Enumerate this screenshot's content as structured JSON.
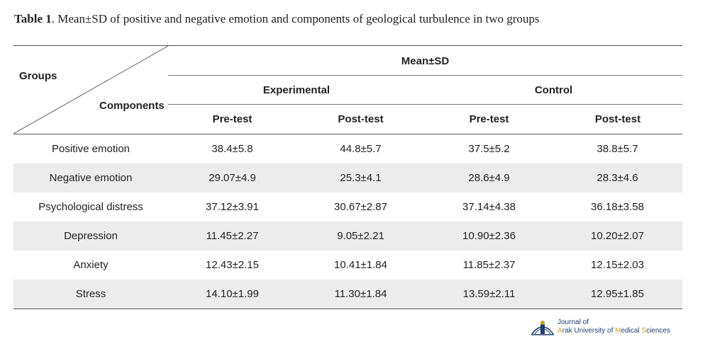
{
  "caption": {
    "label": "Table 1",
    "text": ". Mean±SD of positive and negative emotion and components of geological turbulence in two groups"
  },
  "header": {
    "groups": "Groups",
    "components": "Components",
    "mean_sd": "Mean±SD",
    "experimental": "Experimental",
    "control": "Control",
    "pre_test_exp": "Pre-test",
    "post_test_exp": "Post-test",
    "pre_test_ctrl": "Pre-test",
    "post_test_ctrl": "Post-test"
  },
  "rows": [
    {
      "component": "Positive emotion",
      "exp_pre": "38.4±5.8",
      "exp_post": "44.8±5.7",
      "ctrl_pre": "37.5±5.2",
      "ctrl_post": "38.8±5.7"
    },
    {
      "component": "Negative emotion",
      "exp_pre": "29.07±4.9",
      "exp_post": "25.3±4.1",
      "ctrl_pre": "28.6±4.9",
      "ctrl_post": "28.3±4.6"
    },
    {
      "component": "Psychological distress",
      "exp_pre": "37.12±3.91",
      "exp_post": "30.67±2.87",
      "ctrl_pre": "37.14±4.38",
      "ctrl_post": "36.18±3.58"
    },
    {
      "component": "Depression",
      "exp_pre": "11.45±2.27",
      "exp_post": "9.05±2.21",
      "ctrl_pre": "10.90±2.36",
      "ctrl_post": "10.20±2.07"
    },
    {
      "component": "Anxiety",
      "exp_pre": "12.43±2.15",
      "exp_post": "10.41±1.84",
      "ctrl_pre": "11.85±2.37",
      "ctrl_post": "12.15±2.03"
    },
    {
      "component": "Stress",
      "exp_pre": "14.10±1.99",
      "exp_post": "11.30±1.84",
      "ctrl_pre": "13.59±2.11",
      "ctrl_post": "12.95±1.85"
    }
  ],
  "logo": {
    "line1": "Journal of",
    "line2_part1": "A",
    "line2_part2": "rak University of ",
    "line2_part3": "M",
    "line2_part4": "edical ",
    "line2_part5": "S",
    "line2_part6": "ciences"
  },
  "colors": {
    "row_shade": "#ececec",
    "logo_blue": "#1f3d6e",
    "logo_gold": "#c9a227"
  }
}
